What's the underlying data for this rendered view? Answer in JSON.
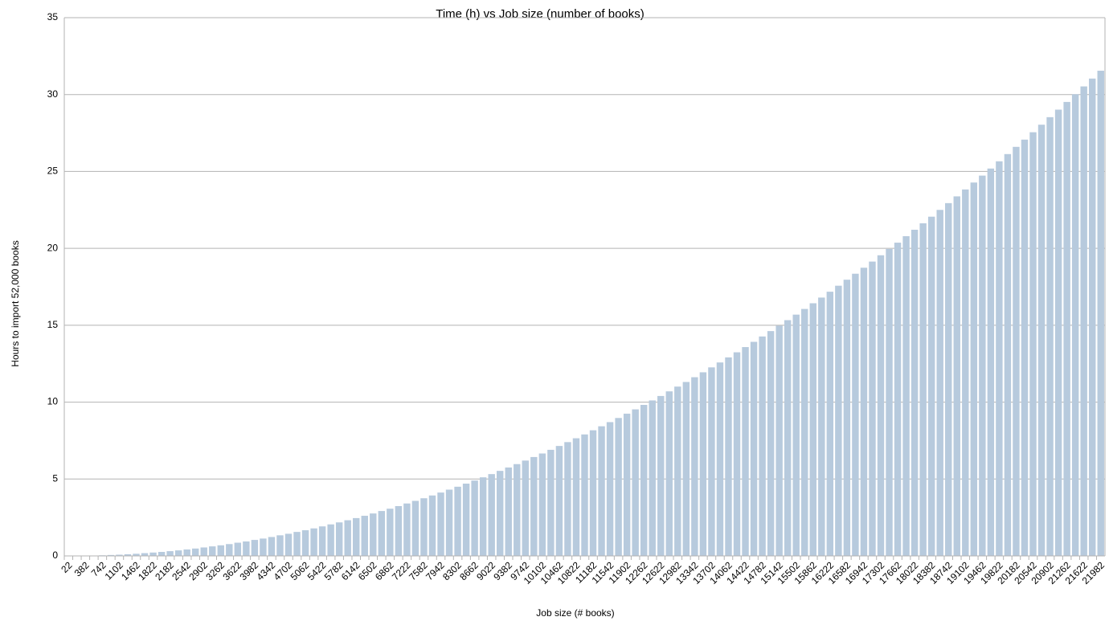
{
  "chart_data": {
    "type": "bar",
    "title": "Time (h) vs Job size (number of books)",
    "x_label": "Job size (# books)",
    "y_label": "Hours to import 52,000 books",
    "categories": [
      "22",
      null,
      "382",
      null,
      "742",
      null,
      "1102",
      null,
      "1462",
      null,
      "1822",
      null,
      "2182",
      null,
      "2542",
      null,
      "2902",
      null,
      "3262",
      null,
      "3622",
      null,
      "3982",
      null,
      "4342",
      null,
      "4702",
      null,
      "5062",
      null,
      "5422",
      null,
      "5782",
      null,
      "6142",
      null,
      "6502",
      null,
      "6862",
      null,
      "7222",
      null,
      "7582",
      null,
      "7942",
      null,
      "8302",
      null,
      "8662",
      null,
      "9022",
      null,
      "9382",
      null,
      "9742",
      null,
      "10102",
      null,
      "10462",
      null,
      "10822",
      null,
      "11182",
      null,
      "11542",
      null,
      "11902",
      null,
      "12262",
      null,
      "12622",
      null,
      "12982",
      null,
      "13342",
      null,
      "13702",
      null,
      "14062",
      null,
      "14422",
      null,
      "14782",
      null,
      "15142",
      null,
      "15502",
      null,
      "15862",
      null,
      "16222",
      null,
      "16582",
      null,
      "16942",
      null,
      "17302",
      null,
      "17662",
      null,
      "18022",
      null,
      "18382",
      null,
      "18742",
      null,
      "19102",
      null,
      "19462",
      null,
      "19822",
      null,
      "20182",
      null,
      "20542",
      null,
      "20902",
      null,
      "21262",
      null,
      "21622",
      null,
      "21982"
    ],
    "values": [
      0.0,
      0.0,
      0.01,
      0.02,
      0.04,
      0.06,
      0.08,
      0.11,
      0.14,
      0.18,
      0.22,
      0.26,
      0.31,
      0.36,
      0.42,
      0.48,
      0.55,
      0.62,
      0.69,
      0.77,
      0.86,
      0.94,
      1.04,
      1.13,
      1.23,
      1.34,
      1.44,
      1.56,
      1.67,
      1.79,
      1.92,
      2.05,
      2.18,
      2.32,
      2.46,
      2.61,
      2.76,
      2.92,
      3.07,
      3.24,
      3.41,
      3.58,
      3.75,
      3.93,
      4.12,
      4.31,
      4.5,
      4.7,
      4.9,
      5.11,
      5.32,
      5.53,
      5.75,
      5.97,
      6.2,
      6.43,
      6.66,
      6.9,
      7.15,
      7.4,
      7.65,
      7.9,
      8.17,
      8.43,
      8.7,
      8.97,
      9.25,
      9.53,
      9.82,
      10.11,
      10.4,
      10.7,
      11.01,
      11.31,
      11.62,
      11.94,
      12.26,
      12.58,
      12.91,
      13.24,
      13.58,
      13.92,
      14.27,
      14.62,
      14.97,
      15.33,
      15.69,
      16.06,
      16.43,
      16.8,
      17.18,
      17.57,
      17.96,
      18.35,
      18.74,
      19.14,
      19.55,
      19.96,
      20.37,
      20.79,
      21.21,
      21.63,
      22.06,
      22.5,
      22.94,
      23.38,
      23.83,
      24.28,
      24.73,
      25.19,
      25.66,
      26.13,
      26.6,
      27.07,
      27.55,
      28.04,
      28.53,
      29.02,
      29.52,
      30.02,
      30.53,
      31.04,
      31.55
    ],
    "color": "#b7cadd",
    "ylim": [
      0,
      35
    ],
    "yticks": [
      0,
      5,
      10,
      15,
      20,
      25,
      30,
      35
    ],
    "grid": true
  }
}
